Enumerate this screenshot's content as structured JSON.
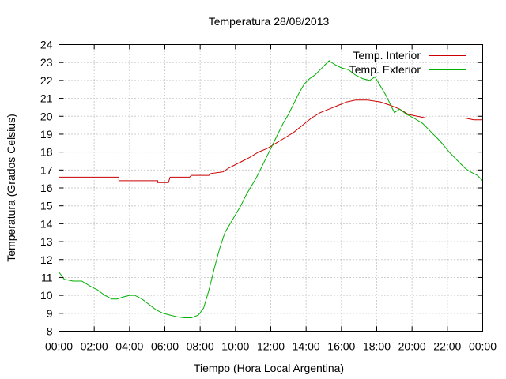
{
  "chart_data": {
    "type": "line",
    "title": "Temperatura 28/08/2013",
    "xlabel": "Tiempo (Hora Local Argentina)",
    "ylabel": "Temperatura (Grados Celsius)",
    "x_ticks": [
      "00:00",
      "02:00",
      "04:00",
      "06:00",
      "08:00",
      "10:00",
      "12:00",
      "14:00",
      "16:00",
      "18:00",
      "20:00",
      "22:00",
      "00:00"
    ],
    "xlim": [
      0,
      24
    ],
    "ylim": [
      8,
      24
    ],
    "y_ticks": [
      8,
      9,
      10,
      11,
      12,
      13,
      14,
      15,
      16,
      17,
      18,
      19,
      20,
      21,
      22,
      23,
      24
    ],
    "grid": true,
    "legend_position": "top-right",
    "series": [
      {
        "name": "Temp. Interior",
        "color": "#cc0000",
        "points": [
          [
            0,
            16.6
          ],
          [
            3.4,
            16.6
          ],
          [
            3.4,
            16.4
          ],
          [
            5.6,
            16.4
          ],
          [
            5.6,
            16.3
          ],
          [
            6.2,
            16.3
          ],
          [
            6.3,
            16.6
          ],
          [
            7.4,
            16.6
          ],
          [
            7.5,
            16.7
          ],
          [
            8.5,
            16.7
          ],
          [
            8.6,
            16.8
          ],
          [
            9.3,
            16.9
          ],
          [
            9.6,
            17.1
          ],
          [
            10.0,
            17.3
          ],
          [
            10.4,
            17.5
          ],
          [
            10.8,
            17.7
          ],
          [
            11.3,
            18.0
          ],
          [
            11.8,
            18.2
          ],
          [
            12.3,
            18.5
          ],
          [
            12.8,
            18.8
          ],
          [
            13.3,
            19.1
          ],
          [
            13.8,
            19.5
          ],
          [
            14.3,
            19.9
          ],
          [
            14.8,
            20.2
          ],
          [
            15.3,
            20.4
          ],
          [
            15.8,
            20.6
          ],
          [
            16.3,
            20.8
          ],
          [
            16.8,
            20.9
          ],
          [
            17.5,
            20.9
          ],
          [
            18.2,
            20.8
          ],
          [
            18.8,
            20.6
          ],
          [
            19.3,
            20.4
          ],
          [
            19.8,
            20.1
          ],
          [
            20.3,
            20.0
          ],
          [
            20.8,
            19.9
          ],
          [
            21.5,
            19.9
          ],
          [
            22.0,
            19.9
          ],
          [
            23.0,
            19.9
          ],
          [
            23.5,
            19.8
          ],
          [
            24.0,
            19.8
          ]
        ]
      },
      {
        "name": "Temp. Exterior",
        "color": "#00b000",
        "points": [
          [
            0,
            11.3
          ],
          [
            0.3,
            10.9
          ],
          [
            0.8,
            10.8
          ],
          [
            1.3,
            10.8
          ],
          [
            1.8,
            10.5
          ],
          [
            2.2,
            10.3
          ],
          [
            2.6,
            10.0
          ],
          [
            3.0,
            9.8
          ],
          [
            3.3,
            9.8
          ],
          [
            3.6,
            9.9
          ],
          [
            4.0,
            10.0
          ],
          [
            4.3,
            10.0
          ],
          [
            4.7,
            9.8
          ],
          [
            5.1,
            9.5
          ],
          [
            5.5,
            9.2
          ],
          [
            5.9,
            9.0
          ],
          [
            6.3,
            8.9
          ],
          [
            6.7,
            8.8
          ],
          [
            7.1,
            8.75
          ],
          [
            7.5,
            8.75
          ],
          [
            7.9,
            8.9
          ],
          [
            8.2,
            9.3
          ],
          [
            8.5,
            10.3
          ],
          [
            8.8,
            11.5
          ],
          [
            9.1,
            12.6
          ],
          [
            9.4,
            13.5
          ],
          [
            9.7,
            14.0
          ],
          [
            10.0,
            14.5
          ],
          [
            10.3,
            15.0
          ],
          [
            10.6,
            15.6
          ],
          [
            10.9,
            16.1
          ],
          [
            11.2,
            16.6
          ],
          [
            11.5,
            17.2
          ],
          [
            11.8,
            17.8
          ],
          [
            12.1,
            18.4
          ],
          [
            12.4,
            19.0
          ],
          [
            12.7,
            19.6
          ],
          [
            13.0,
            20.1
          ],
          [
            13.3,
            20.7
          ],
          [
            13.6,
            21.3
          ],
          [
            13.9,
            21.8
          ],
          [
            14.2,
            22.1
          ],
          [
            14.5,
            22.3
          ],
          [
            14.8,
            22.6
          ],
          [
            15.1,
            22.9
          ],
          [
            15.3,
            23.1
          ],
          [
            15.6,
            22.9
          ],
          [
            16.0,
            22.7
          ],
          [
            16.4,
            22.6
          ],
          [
            16.8,
            22.3
          ],
          [
            17.2,
            22.1
          ],
          [
            17.6,
            22.0
          ],
          [
            17.9,
            22.2
          ],
          [
            18.2,
            21.7
          ],
          [
            18.5,
            21.2
          ],
          [
            18.8,
            20.6
          ],
          [
            19.0,
            20.2
          ],
          [
            19.3,
            20.4
          ],
          [
            19.7,
            20.1
          ],
          [
            20.1,
            19.9
          ],
          [
            20.6,
            19.6
          ],
          [
            21.1,
            19.1
          ],
          [
            21.6,
            18.6
          ],
          [
            22.1,
            18.0
          ],
          [
            22.6,
            17.5
          ],
          [
            23.0,
            17.1
          ],
          [
            23.3,
            16.9
          ],
          [
            23.7,
            16.7
          ],
          [
            24.0,
            16.4
          ]
        ]
      }
    ]
  }
}
